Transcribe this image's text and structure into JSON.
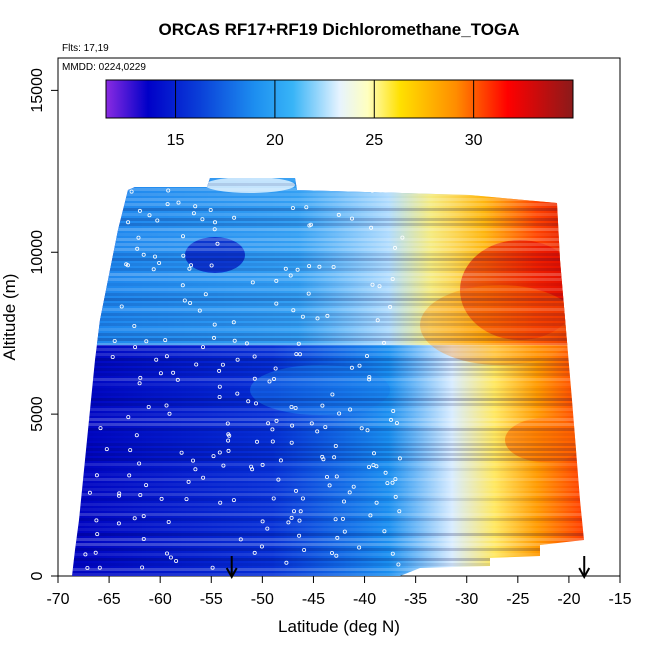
{
  "chart_data": {
    "type": "heatmap",
    "title": "ORCAS RF17+RF19 Dichloromethane_TOGA",
    "annotations": [
      "Flts: 17,19",
      "MMDD: 0224,0229"
    ],
    "xlabel": "Latitude (deg N)",
    "ylabel": "Altitude (m)",
    "xlim": [
      -70,
      -15
    ],
    "ylim": [
      0,
      16000
    ],
    "x_ticks": [
      -70,
      -65,
      -60,
      -55,
      -50,
      -45,
      -40,
      -35,
      -30,
      -25,
      -20,
      -15
    ],
    "x_tick_labels": [
      "-70",
      "-65",
      "-60",
      "-55",
      "-50",
      "-45",
      "-40",
      "-35",
      "-30",
      "-25",
      "-20",
      "-15"
    ],
    "y_ticks": [
      0,
      5000,
      10000,
      15000
    ],
    "y_tick_labels": [
      "0",
      "5000",
      "10000",
      "15000"
    ],
    "colorbar": {
      "range": [
        11.5,
        35
      ],
      "ticks": [
        15,
        20,
        25,
        30
      ],
      "tick_labels": [
        "15",
        "20",
        "25",
        "30"
      ],
      "placement": "top-inside",
      "colors": [
        "#8a2be2",
        "#0000c8",
        "#0b5fe6",
        "#1ea7f5",
        "#e6f3ff",
        "#ffffa0",
        "#ffd700",
        "#ff8c00",
        "#ff0000",
        "#8b1a1a"
      ]
    },
    "arrows_at_latitude": [
      -53,
      -18.5
    ],
    "grid": false
  }
}
